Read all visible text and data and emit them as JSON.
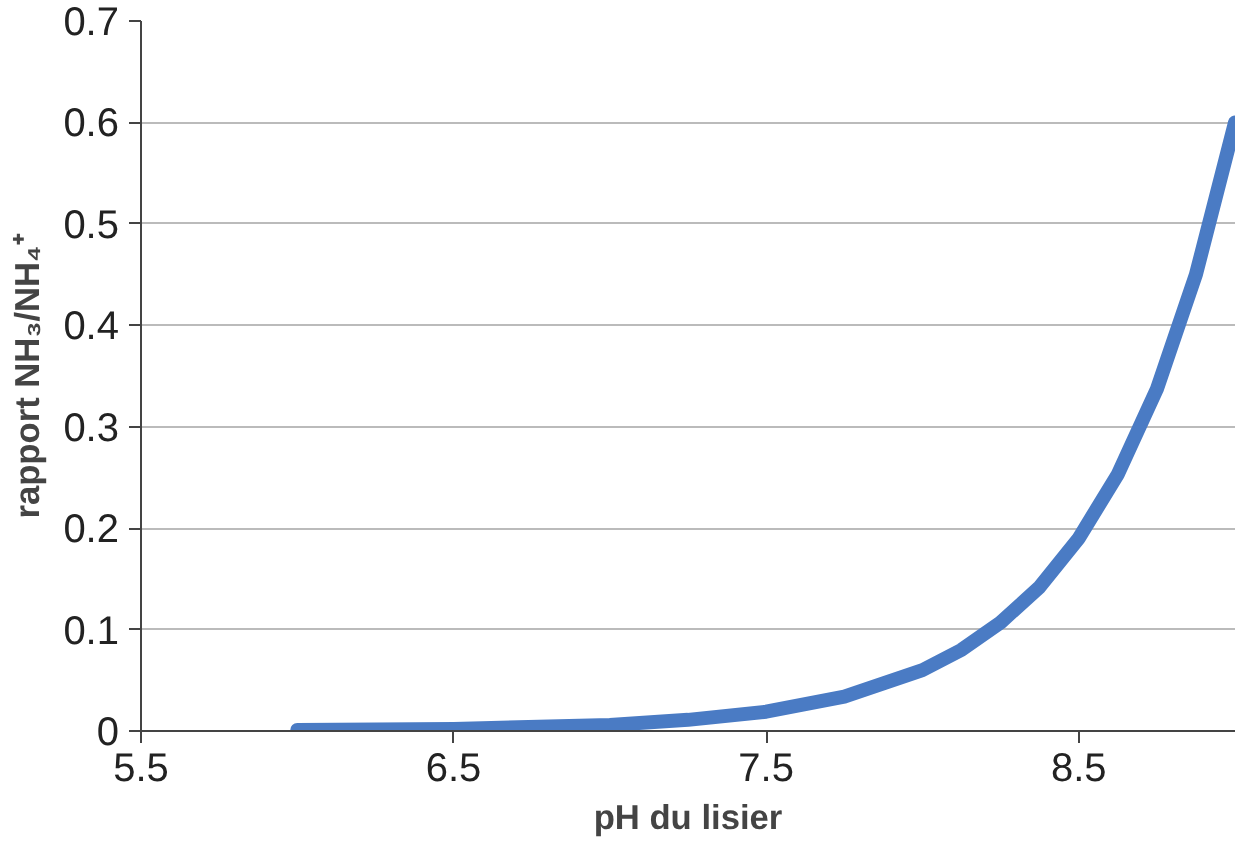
{
  "chart_data": {
    "type": "line",
    "xlabel": "pH du lisier",
    "ylabel": "rapport NH₃/NH₄⁺",
    "x": [
      6.0,
      6.5,
      7.0,
      7.25,
      7.5,
      7.75,
      8.0,
      8.125,
      8.25,
      8.375,
      8.5,
      8.625,
      8.75,
      8.875,
      9.0
    ],
    "series": [
      {
        "color": "#4a7bc4",
        "values": [
          0.001,
          0.002,
          0.006,
          0.011,
          0.019,
          0.034,
          0.06,
          0.08,
          0.107,
          0.142,
          0.19,
          0.253,
          0.337,
          0.45,
          0.6
        ]
      }
    ],
    "xlim": [
      5.5,
      9.0
    ],
    "ylim": [
      0,
      0.7
    ],
    "xticks": [
      5.5,
      6.5,
      7.5,
      8.5
    ],
    "yticks": [
      0,
      0.1,
      0.2,
      0.3,
      0.4,
      0.5,
      0.6,
      0.7
    ],
    "grid": "y",
    "line_style": "solid"
  }
}
